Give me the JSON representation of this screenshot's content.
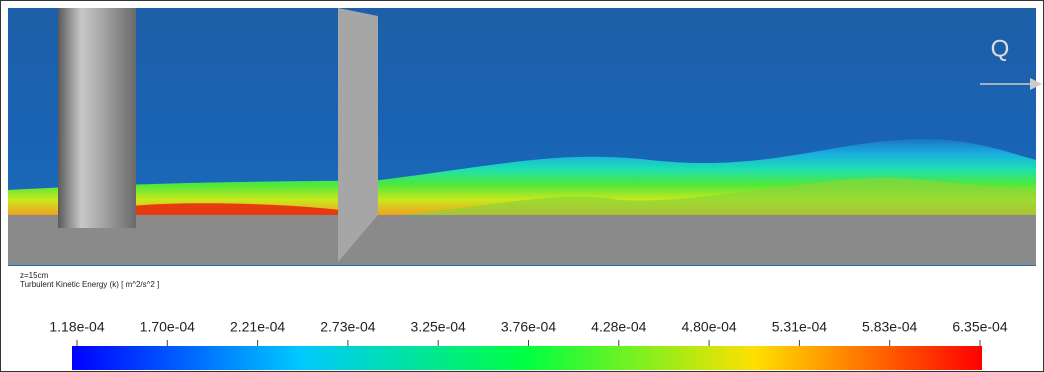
{
  "flow_label": "Q",
  "annotation": {
    "plane": "z=15cm",
    "variable": "Turbulent Kinetic Energy (k) [ m^2/s^2 ]"
  },
  "colorbar": {
    "ticks": [
      "1.18e-04",
      "1.70e-04",
      "2.21e-04",
      "2.73e-04",
      "3.25e-04",
      "3.76e-04",
      "4.28e-04",
      "4.80e-04",
      "5.31e-04",
      "5.83e-04",
      "6.35e-04"
    ]
  }
}
